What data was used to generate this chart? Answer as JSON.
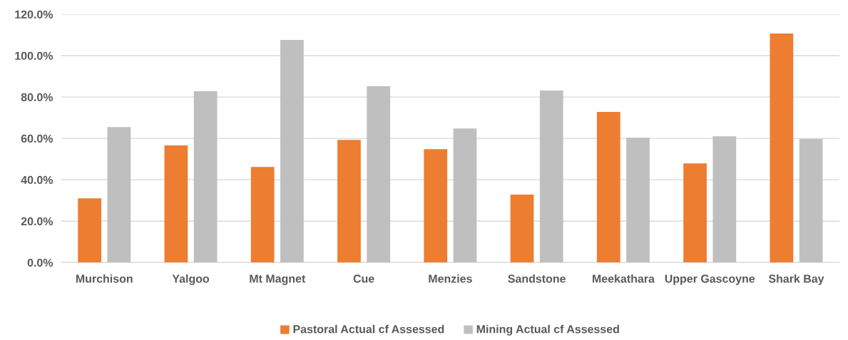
{
  "chart_data": {
    "type": "bar",
    "categories": [
      "Murchison",
      "Yalgoo",
      "Mt Magnet",
      "Cue",
      "Menzies",
      "Sandstone",
      "Meekathara",
      "Upper Gascoyne",
      "Shark Bay"
    ],
    "series": [
      {
        "name": "Pastoral Actual cf Assessed",
        "color": "#ed7d31",
        "values": [
          31.0,
          56.6,
          46.2,
          59.3,
          54.8,
          32.8,
          72.8,
          47.9,
          110.7
        ]
      },
      {
        "name": "Mining Actual cf Assessed",
        "color": "#bfbfbf",
        "values": [
          65.5,
          82.8,
          107.6,
          85.2,
          64.8,
          83.1,
          60.3,
          61.0,
          59.7
        ]
      }
    ],
    "ylim": [
      0,
      120
    ],
    "yticks": [
      {
        "value": 0,
        "label": "0.0%"
      },
      {
        "value": 20,
        "label": "20.0%"
      },
      {
        "value": 40,
        "label": "40.0%"
      },
      {
        "value": 60,
        "label": "60.0%"
      },
      {
        "value": 80,
        "label": "80.0%"
      },
      {
        "value": 100,
        "label": "100.0%"
      },
      {
        "value": 120,
        "label": "120.0%"
      }
    ],
    "grid": "y",
    "legend": "bottom"
  }
}
